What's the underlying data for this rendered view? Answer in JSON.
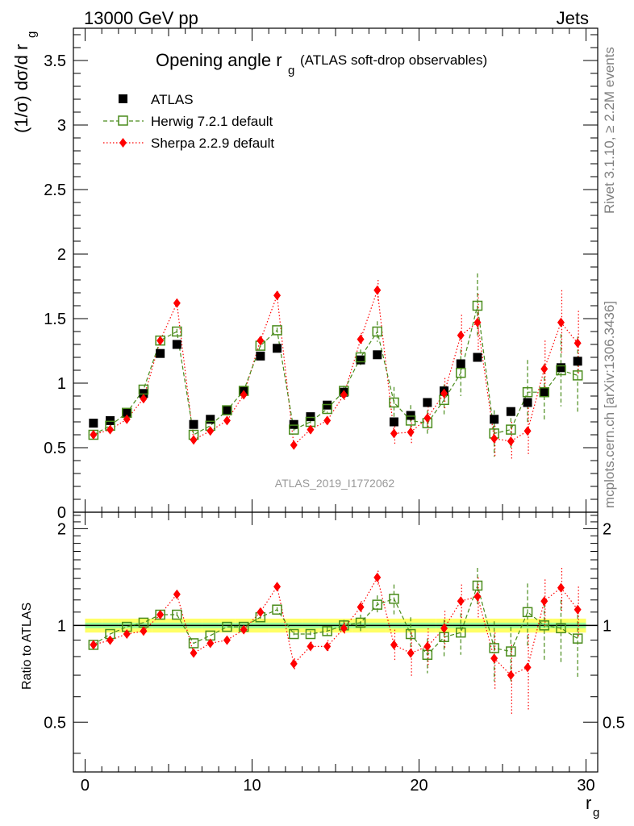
{
  "header": {
    "energy": "13000 GeV pp",
    "category": "Jets"
  },
  "side": {
    "rivet": "Rivet 3.1.10, ≥ 2.2M events",
    "mcplots": "mcplots.cern.ch [arXiv:1306.3436]"
  },
  "colors": {
    "atlas": "#000000",
    "herwig": "#4a8c1c",
    "sherpa": "#ff0000",
    "band_inner": "#98fb98",
    "band_outer": "#ffff66",
    "analysis_label": "#999999"
  },
  "chart_data": [
    {
      "type": "scatter",
      "title_main": "Opening angle r",
      "title_sub": "g",
      "title_note": "(ATLAS soft-drop observables)",
      "ylabel": "(1/σ) dσ/d r",
      "ylabel_sub": "g",
      "analysis": "ATLAS_2019_I1772062",
      "xlim": [
        -0.7,
        30.7
      ],
      "ylim": [
        0,
        3.75
      ],
      "yticks": [
        0,
        0.5,
        1,
        1.5,
        2,
        2.5,
        3,
        3.5
      ],
      "ytick_labels": [
        "0",
        "0.5",
        "1",
        "1.5",
        "2",
        "2.5",
        "3",
        "3.5"
      ],
      "x": [
        0.5,
        1.5,
        2.5,
        3.5,
        4.5,
        5.5,
        6.5,
        7.5,
        8.5,
        9.5,
        10.5,
        11.5,
        12.5,
        13.5,
        14.5,
        15.5,
        16.5,
        17.5,
        18.5,
        19.5,
        20.5,
        21.5,
        22.5,
        23.5,
        24.5,
        25.5,
        26.5,
        27.5,
        28.5,
        29.5
      ],
      "legend": [
        "ATLAS",
        "Herwig 7.2.1 default",
        "Sherpa 2.2.9 default"
      ],
      "series": [
        {
          "name": "ATLAS",
          "values": [
            0.69,
            0.71,
            0.77,
            0.92,
            1.23,
            1.3,
            0.68,
            0.72,
            0.79,
            0.94,
            1.21,
            1.27,
            0.68,
            0.74,
            0.83,
            0.93,
            1.18,
            1.22,
            0.7,
            0.75,
            0.85,
            0.94,
            1.15,
            1.2,
            0.72,
            0.78,
            0.85,
            0.93,
            1.12,
            1.17
          ]
        },
        {
          "name": "Herwig 7.2.1 default",
          "values": [
            0.6,
            0.67,
            0.77,
            0.95,
            1.33,
            1.4,
            0.6,
            0.67,
            0.79,
            0.94,
            1.29,
            1.41,
            0.64,
            0.7,
            0.8,
            0.94,
            1.2,
            1.4,
            0.85,
            0.71,
            0.69,
            0.87,
            1.08,
            1.6,
            0.61,
            0.64,
            0.93,
            0.93,
            1.1,
            1.06
          ],
          "errors": [
            0.01,
            0.01,
            0.01,
            0.01,
            0.02,
            0.02,
            0.01,
            0.01,
            0.01,
            0.01,
            0.02,
            0.02,
            0.02,
            0.02,
            0.03,
            0.04,
            0.06,
            0.08,
            0.12,
            0.12,
            0.1,
            0.12,
            0.18,
            0.25,
            0.18,
            0.14,
            0.25,
            0.22,
            0.28,
            0.3
          ]
        },
        {
          "name": "Sherpa 2.2.9 default",
          "values": [
            0.6,
            0.64,
            0.72,
            0.88,
            1.33,
            1.62,
            0.56,
            0.63,
            0.71,
            0.91,
            1.33,
            1.68,
            0.52,
            0.64,
            0.71,
            0.91,
            1.34,
            1.72,
            0.61,
            0.62,
            0.73,
            0.92,
            1.37,
            1.47,
            0.57,
            0.55,
            0.63,
            1.11,
            1.47,
            1.31
          ],
          "errors": [
            0.01,
            0.01,
            0.01,
            0.01,
            0.02,
            0.02,
            0.01,
            0.01,
            0.01,
            0.02,
            0.03,
            0.03,
            0.02,
            0.03,
            0.03,
            0.04,
            0.05,
            0.08,
            0.08,
            0.1,
            0.09,
            0.12,
            0.16,
            0.22,
            0.15,
            0.15,
            0.18,
            0.22,
            0.25,
            0.25
          ]
        }
      ]
    },
    {
      "type": "scatter",
      "ylabel": "Ratio to ATLAS",
      "xlabel": "r",
      "xlabel_sub": "g",
      "xlim": [
        -0.7,
        30.7
      ],
      "ylim": [
        0.35,
        2.25
      ],
      "xticks": [
        0,
        10,
        20,
        30
      ],
      "xtick_labels": [
        "0",
        "10",
        "20",
        "30"
      ],
      "yticks": [
        0.5,
        1,
        2
      ],
      "ytick_labels": [
        "0.5",
        "1",
        "2"
      ],
      "x": [
        0.5,
        1.5,
        2.5,
        3.5,
        4.5,
        5.5,
        6.5,
        7.5,
        8.5,
        9.5,
        10.5,
        11.5,
        12.5,
        13.5,
        14.5,
        15.5,
        16.5,
        17.5,
        18.5,
        19.5,
        20.5,
        21.5,
        22.5,
        23.5,
        24.5,
        25.5,
        26.5,
        27.5,
        28.5,
        29.5
      ],
      "band_inner": [
        0.02,
        0.02,
        0.02,
        0.02,
        0.02,
        0.02,
        0.02,
        0.02,
        0.02,
        0.02,
        0.02,
        0.02,
        0.02,
        0.02,
        0.02,
        0.02,
        0.02,
        0.02,
        0.02,
        0.02,
        0.02,
        0.02,
        0.02,
        0.02,
        0.02,
        0.02,
        0.02,
        0.02,
        0.02,
        0.02
      ],
      "band_outer": [
        0.05,
        0.05,
        0.05,
        0.05,
        0.05,
        0.05,
        0.05,
        0.05,
        0.05,
        0.05,
        0.05,
        0.05,
        0.05,
        0.05,
        0.05,
        0.05,
        0.05,
        0.05,
        0.05,
        0.05,
        0.05,
        0.05,
        0.05,
        0.05,
        0.05,
        0.05,
        0.05,
        0.05,
        0.05,
        0.05
      ],
      "series": [
        {
          "name": "Herwig 7.2.1 default",
          "values": [
            0.87,
            0.94,
            0.99,
            1.02,
            1.08,
            1.08,
            0.88,
            0.93,
            0.99,
            0.99,
            1.06,
            1.12,
            0.94,
            0.94,
            0.96,
            1.0,
            1.02,
            1.16,
            1.21,
            0.94,
            0.81,
            0.92,
            0.95,
            1.33,
            0.85,
            0.83,
            1.1,
            1.0,
            0.98,
            0.91
          ],
          "errors": [
            0.01,
            0.01,
            0.01,
            0.01,
            0.02,
            0.02,
            0.01,
            0.01,
            0.01,
            0.01,
            0.02,
            0.02,
            0.02,
            0.02,
            0.03,
            0.04,
            0.06,
            0.08,
            0.13,
            0.12,
            0.1,
            0.12,
            0.14,
            0.18,
            0.18,
            0.16,
            0.25,
            0.22,
            0.22,
            0.22
          ]
        },
        {
          "name": "Sherpa 2.2.9 default",
          "values": [
            0.87,
            0.9,
            0.94,
            0.96,
            1.08,
            1.25,
            0.82,
            0.88,
            0.9,
            0.97,
            1.1,
            1.32,
            0.76,
            0.86,
            0.86,
            0.98,
            1.14,
            1.41,
            0.87,
            0.82,
            0.86,
            0.98,
            1.19,
            1.23,
            0.79,
            0.7,
            0.74,
            1.19,
            1.31,
            1.12
          ],
          "errors": [
            0.01,
            0.01,
            0.01,
            0.01,
            0.02,
            0.02,
            0.01,
            0.01,
            0.01,
            0.02,
            0.03,
            0.03,
            0.03,
            0.03,
            0.04,
            0.04,
            0.05,
            0.07,
            0.1,
            0.13,
            0.12,
            0.13,
            0.15,
            0.18,
            0.16,
            0.17,
            0.2,
            0.2,
            0.2,
            0.2
          ]
        }
      ]
    }
  ]
}
